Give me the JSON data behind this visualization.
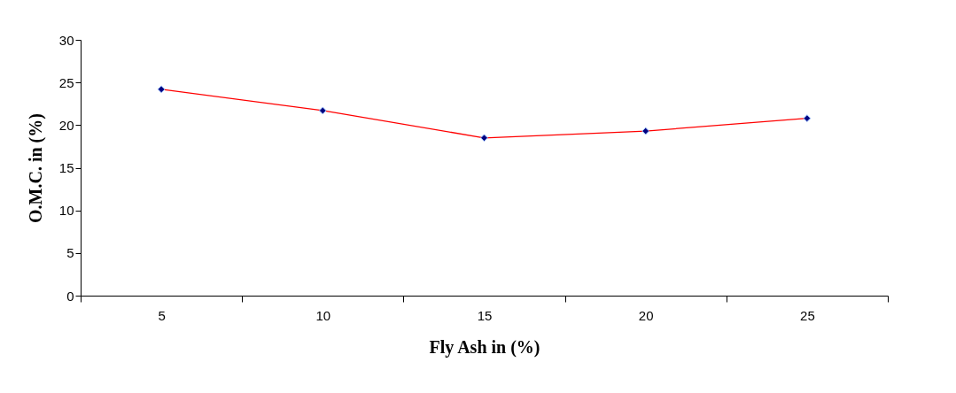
{
  "chart_data": {
    "type": "line",
    "xlabel": "Fly Ash in (%)",
    "ylabel": "O.M.C. in (%)",
    "categories": [
      "5",
      "10",
      "15",
      "20",
      "25"
    ],
    "series": [
      {
        "color": "#ff0000",
        "values": [
          24.2,
          21.7,
          18.5,
          19.3,
          20.8
        ]
      }
    ],
    "ylim": [
      0,
      30
    ],
    "yticks": [
      0,
      5,
      10,
      15,
      20,
      25,
      30
    ],
    "grid": false,
    "marker": "diamond",
    "line_style": "solid"
  }
}
